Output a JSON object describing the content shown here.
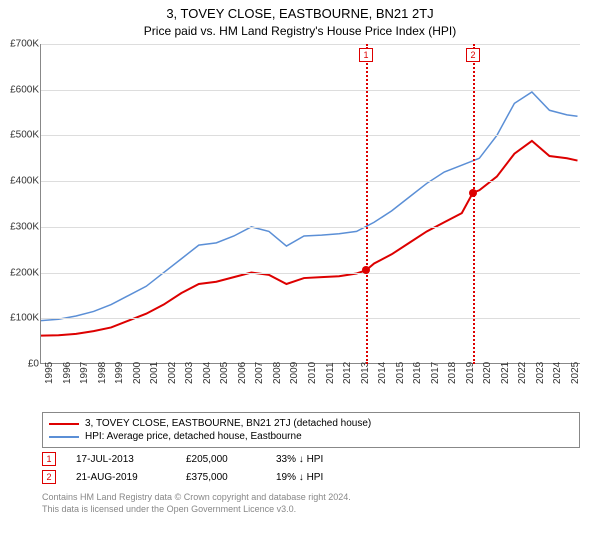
{
  "title": "3, TOVEY CLOSE, EASTBOURNE, BN21 2TJ",
  "subtitle": "Price paid vs. HM Land Registry's House Price Index (HPI)",
  "chart": {
    "type": "line",
    "xlim": [
      1995,
      2025.8
    ],
    "ylim": [
      0,
      700000
    ],
    "ytick_step": 100000,
    "yticks_labels": [
      "£0",
      "£100K",
      "£200K",
      "£300K",
      "£400K",
      "£500K",
      "£600K",
      "£700K"
    ],
    "xticks": [
      1995,
      1996,
      1997,
      1998,
      1999,
      2000,
      2001,
      2002,
      2003,
      2004,
      2005,
      2006,
      2007,
      2008,
      2009,
      2010,
      2011,
      2012,
      2013,
      2014,
      2015,
      2016,
      2017,
      2018,
      2019,
      2020,
      2021,
      2022,
      2023,
      2024,
      2025
    ],
    "background_color": "#ffffff",
    "grid_color": "#dddddd",
    "axis_color": "#888888",
    "series": {
      "price_paid": {
        "label": "3, TOVEY CLOSE, EASTBOURNE, BN21 2TJ (detached house)",
        "color": "#dd0000",
        "width": 2,
        "data": [
          [
            1995,
            62000
          ],
          [
            1996,
            63000
          ],
          [
            1997,
            66000
          ],
          [
            1998,
            72000
          ],
          [
            1999,
            80000
          ],
          [
            2000,
            95000
          ],
          [
            2001,
            110000
          ],
          [
            2002,
            130000
          ],
          [
            2003,
            155000
          ],
          [
            2004,
            175000
          ],
          [
            2005,
            180000
          ],
          [
            2006,
            190000
          ],
          [
            2007,
            200000
          ],
          [
            2008,
            195000
          ],
          [
            2009,
            175000
          ],
          [
            2010,
            188000
          ],
          [
            2011,
            190000
          ],
          [
            2012,
            192000
          ],
          [
            2013,
            198000
          ],
          [
            2013.54,
            205000
          ],
          [
            2014,
            220000
          ],
          [
            2015,
            240000
          ],
          [
            2016,
            265000
          ],
          [
            2017,
            290000
          ],
          [
            2018,
            310000
          ],
          [
            2019,
            330000
          ],
          [
            2019.64,
            375000
          ],
          [
            2020,
            380000
          ],
          [
            2021,
            410000
          ],
          [
            2022,
            460000
          ],
          [
            2023,
            488000
          ],
          [
            2024,
            455000
          ],
          [
            2025,
            450000
          ],
          [
            2025.6,
            445000
          ]
        ]
      },
      "hpi": {
        "label": "HPI: Average price, detached house, Eastbourne",
        "color": "#5b8fd6",
        "width": 1.5,
        "data": [
          [
            1995,
            95000
          ],
          [
            1996,
            98000
          ],
          [
            1997,
            105000
          ],
          [
            1998,
            115000
          ],
          [
            1999,
            130000
          ],
          [
            2000,
            150000
          ],
          [
            2001,
            170000
          ],
          [
            2002,
            200000
          ],
          [
            2003,
            230000
          ],
          [
            2004,
            260000
          ],
          [
            2005,
            265000
          ],
          [
            2006,
            280000
          ],
          [
            2007,
            300000
          ],
          [
            2008,
            290000
          ],
          [
            2009,
            258000
          ],
          [
            2010,
            280000
          ],
          [
            2011,
            282000
          ],
          [
            2012,
            285000
          ],
          [
            2013,
            290000
          ],
          [
            2014,
            310000
          ],
          [
            2015,
            335000
          ],
          [
            2016,
            365000
          ],
          [
            2017,
            395000
          ],
          [
            2018,
            420000
          ],
          [
            2019,
            435000
          ],
          [
            2020,
            450000
          ],
          [
            2021,
            500000
          ],
          [
            2022,
            570000
          ],
          [
            2023,
            595000
          ],
          [
            2024,
            555000
          ],
          [
            2025,
            545000
          ],
          [
            2025.6,
            542000
          ]
        ]
      }
    },
    "markers": [
      {
        "n": "1",
        "x": 2013.54,
        "y": 205000,
        "color": "#dd0000"
      },
      {
        "n": "2",
        "x": 2019.64,
        "y": 375000,
        "color": "#dd0000"
      }
    ]
  },
  "legend": {
    "border_color": "#888888"
  },
  "sales": [
    {
      "n": "1",
      "date": "17-JUL-2013",
      "price": "£205,000",
      "diff": "33% ↓ HPI",
      "color": "#dd0000"
    },
    {
      "n": "2",
      "date": "21-AUG-2019",
      "price": "£375,000",
      "diff": "19% ↓ HPI",
      "color": "#dd0000"
    }
  ],
  "footer": {
    "line1": "Contains HM Land Registry data © Crown copyright and database right 2024.",
    "line2": "This data is licensed under the Open Government Licence v3.0."
  }
}
